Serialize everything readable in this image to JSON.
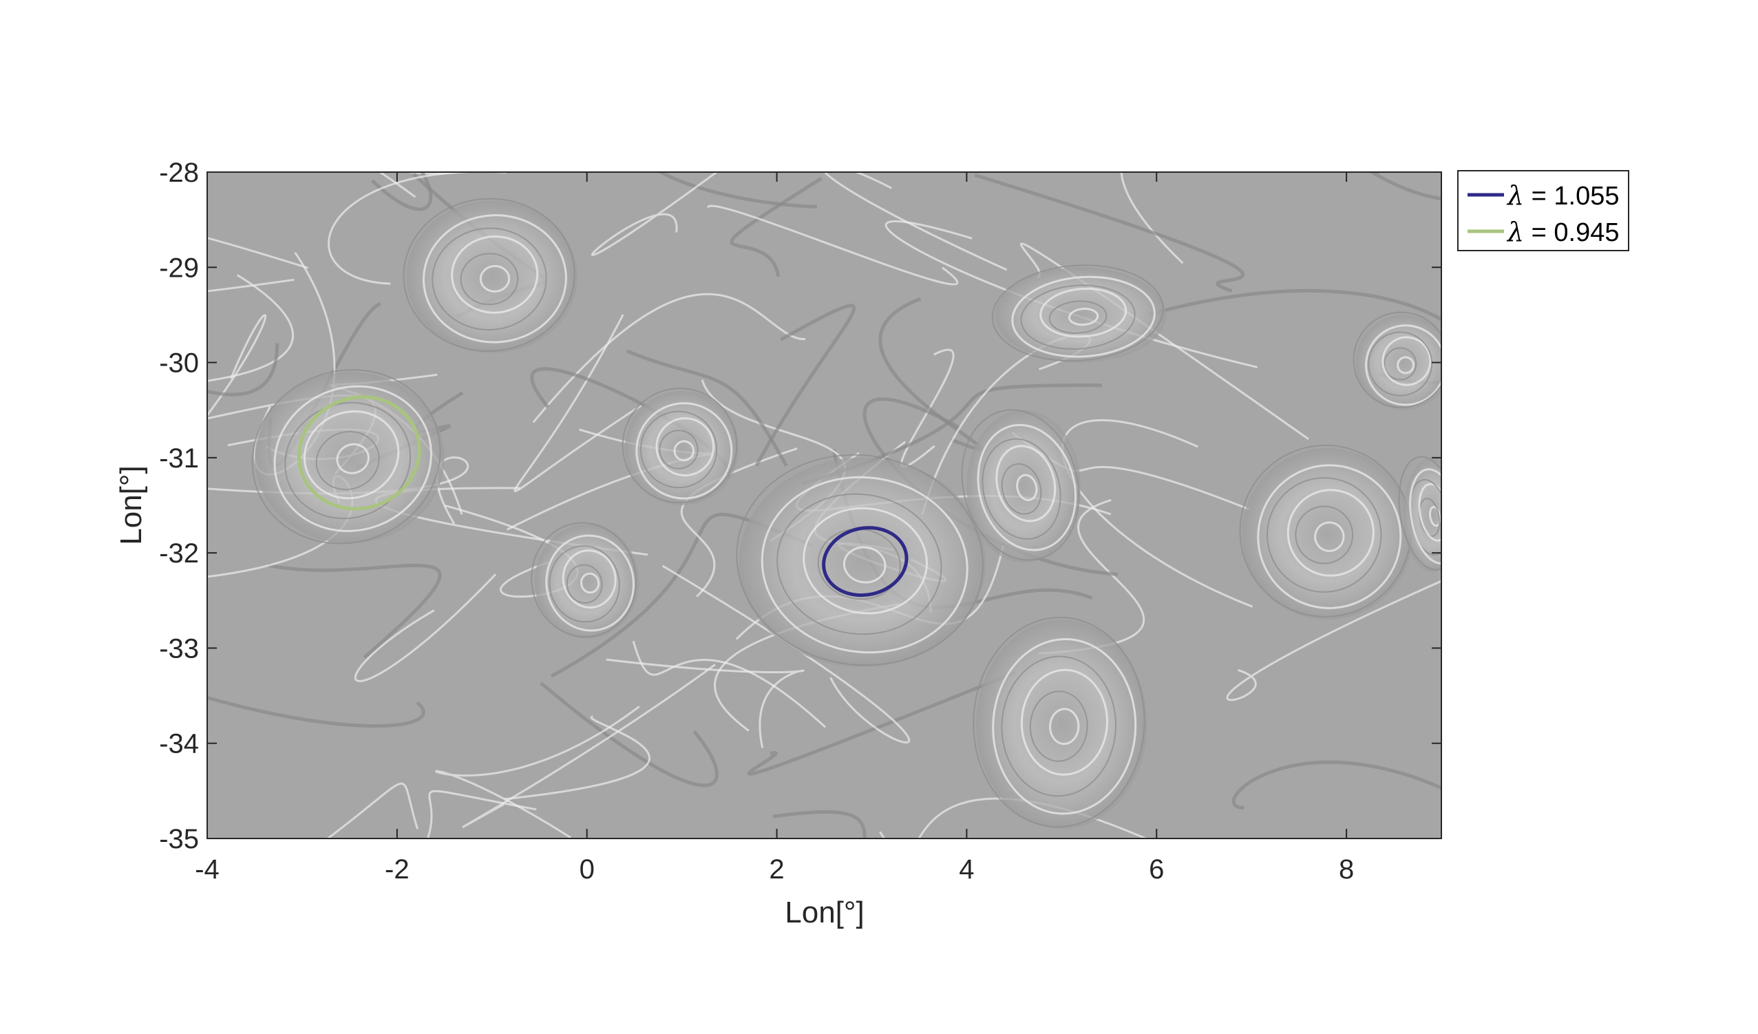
{
  "chart_data": {
    "type": "line",
    "title": "",
    "xlabel": "Lon[°]",
    "ylabel": "Lon[°]",
    "xlim": [
      -4,
      9
    ],
    "ylim": [
      -35,
      -28
    ],
    "xticks": [
      -4,
      -2,
      0,
      2,
      4,
      6,
      8
    ],
    "yticks": [
      -35,
      -34,
      -33,
      -32,
      -31,
      -30,
      -29,
      -28
    ],
    "grid": false,
    "background": "grayscale FTLE-like field with swirling filaments",
    "legend_position": "outside-top-right",
    "series": [
      {
        "name": "λ = 1.055",
        "legend_label": "= 1.055",
        "color": "#2e2a87",
        "shape": "closed-curve",
        "center": [
          2.93,
          -32.09
        ],
        "semi_axes": [
          0.44,
          0.35
        ],
        "rotation_deg": -12
      },
      {
        "name": "λ = 0.945",
        "legend_label": "= 0.945",
        "color": "#a9c47f",
        "shape": "closed-curve",
        "center": [
          -2.4,
          -30.95
        ],
        "semi_axes": [
          0.64,
          0.58
        ],
        "rotation_deg": -20
      }
    ]
  }
}
